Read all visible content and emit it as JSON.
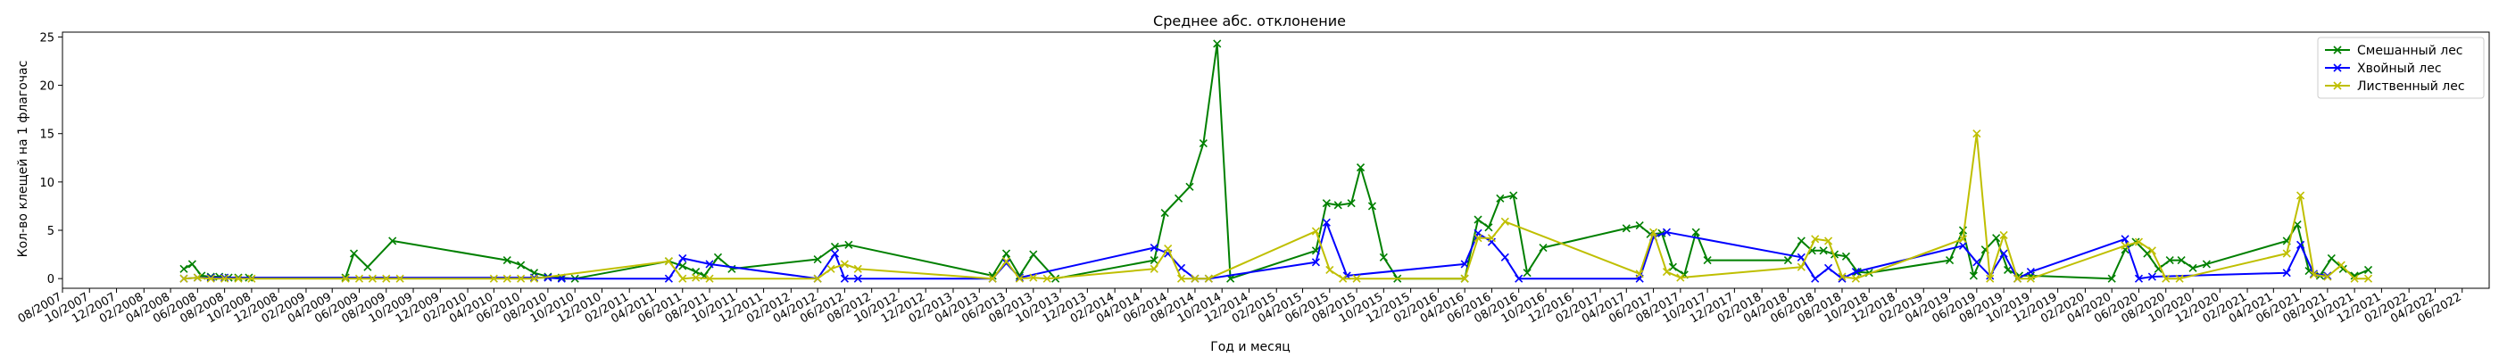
{
  "chart_data": {
    "type": "line",
    "title": "Среднее абс. отклонение",
    "xlabel": "Год и месяц",
    "ylabel": "Кол-во клещей на 1 флагочас",
    "xlim": [
      "2007-08-01",
      "2022-08-01"
    ],
    "ylim": [
      -1,
      25.5
    ],
    "y_ticks": [
      0,
      5,
      10,
      15,
      20,
      25
    ],
    "x_tick_labels": [
      "08/2007",
      "10/2007",
      "12/2007",
      "02/2008",
      "04/2008",
      "06/2008",
      "08/2008",
      "10/2008",
      "12/2008",
      "02/2009",
      "04/2009",
      "06/2009",
      "08/2009",
      "10/2009",
      "12/2009",
      "02/2010",
      "04/2010",
      "06/2010",
      "08/2010",
      "10/2010",
      "12/2010",
      "02/2011",
      "04/2011",
      "06/2011",
      "08/2011",
      "10/2011",
      "12/2011",
      "02/2012",
      "04/2012",
      "06/2012",
      "08/2012",
      "10/2012",
      "12/2012",
      "02/2013",
      "04/2013",
      "06/2013",
      "08/2013",
      "10/2013",
      "12/2013",
      "02/2014",
      "04/2014",
      "06/2014",
      "08/2014",
      "10/2014",
      "12/2014",
      "02/2015",
      "04/2015",
      "06/2015",
      "08/2015",
      "10/2015",
      "12/2015",
      "02/2016",
      "04/2016",
      "06/2016",
      "08/2016",
      "10/2016",
      "12/2016",
      "02/2017",
      "04/2017",
      "06/2017",
      "08/2017",
      "10/2017",
      "12/2017",
      "02/2018",
      "04/2018",
      "06/2018",
      "08/2018",
      "10/2018",
      "12/2018",
      "02/2019",
      "04/2019",
      "06/2019",
      "08/2019",
      "10/2019",
      "12/2019",
      "02/2020",
      "04/2020",
      "06/2020",
      "08/2020",
      "10/2020",
      "12/2020",
      "02/2021",
      "04/2021",
      "06/2021",
      "08/2021",
      "10/2021",
      "12/2021",
      "02/2022",
      "04/2022",
      "06/2022"
    ],
    "grid": false,
    "legend_position": "top-right",
    "series": [
      {
        "name": "Смешанный лес",
        "color": "#008000",
        "points": [
          [
            "2008-05-01",
            1.0
          ],
          [
            "2008-05-20",
            1.5
          ],
          [
            "2008-06-10",
            0.3
          ],
          [
            "2008-07-01",
            0.2
          ],
          [
            "2008-07-20",
            0.2
          ],
          [
            "2008-08-10",
            0.1
          ],
          [
            "2008-09-01",
            0.1
          ],
          [
            "2008-09-25",
            0.1
          ],
          [
            "2009-05-01",
            0.1
          ],
          [
            "2009-05-20",
            2.6
          ],
          [
            "2009-06-20",
            1.2
          ],
          [
            "2009-08-15",
            3.9
          ],
          [
            "2010-05-01",
            1.9
          ],
          [
            "2010-06-01",
            1.4
          ],
          [
            "2010-07-01",
            0.6
          ],
          [
            "2010-08-01",
            0.2
          ],
          [
            "2010-09-01",
            0.1
          ],
          [
            "2010-10-01",
            0.0
          ],
          [
            "2011-05-01",
            1.8
          ],
          [
            "2011-06-01",
            1.3
          ],
          [
            "2011-07-01",
            0.7
          ],
          [
            "2011-07-20",
            0.3
          ],
          [
            "2011-08-20",
            2.2
          ],
          [
            "2011-09-20",
            1.0
          ],
          [
            "2012-04-01",
            2.0
          ],
          [
            "2012-05-10",
            3.3
          ],
          [
            "2012-06-10",
            3.5
          ],
          [
            "2013-05-01",
            0.3
          ],
          [
            "2013-06-01",
            2.6
          ],
          [
            "2013-07-01",
            0.3
          ],
          [
            "2013-08-01",
            2.5
          ],
          [
            "2013-09-20",
            0.0
          ],
          [
            "2014-05-01",
            1.9
          ],
          [
            "2014-05-25",
            6.8
          ],
          [
            "2014-06-25",
            8.3
          ],
          [
            "2014-07-20",
            9.5
          ],
          [
            "2014-08-20",
            14.0
          ],
          [
            "2014-09-20",
            24.3
          ],
          [
            "2014-10-20",
            0.0
          ],
          [
            "2015-05-01",
            2.9
          ],
          [
            "2015-05-25",
            7.8
          ],
          [
            "2015-06-20",
            7.6
          ],
          [
            "2015-07-20",
            7.8
          ],
          [
            "2015-08-10",
            11.5
          ],
          [
            "2015-09-05",
            7.5
          ],
          [
            "2015-10-01",
            2.2
          ],
          [
            "2015-11-01",
            0.0
          ],
          [
            "2016-04-01",
            0.0
          ],
          [
            "2016-05-01",
            6.1
          ],
          [
            "2016-05-25",
            5.3
          ],
          [
            "2016-06-20",
            8.3
          ],
          [
            "2016-07-20",
            8.6
          ],
          [
            "2016-08-20",
            0.6
          ],
          [
            "2016-09-25",
            3.2
          ],
          [
            "2017-04-01",
            5.2
          ],
          [
            "2017-05-01",
            5.5
          ],
          [
            "2017-05-25",
            4.6
          ],
          [
            "2017-06-20",
            4.7
          ],
          [
            "2017-07-15",
            1.2
          ],
          [
            "2017-08-10",
            0.4
          ],
          [
            "2017-09-05",
            4.8
          ],
          [
            "2017-10-01",
            1.9
          ],
          [
            "2018-04-01",
            1.9
          ],
          [
            "2018-05-01",
            3.9
          ],
          [
            "2018-05-25",
            2.9
          ],
          [
            "2018-06-20",
            2.9
          ],
          [
            "2018-07-15",
            2.5
          ],
          [
            "2018-08-10",
            2.3
          ],
          [
            "2018-09-05",
            0.7
          ],
          [
            "2018-10-01",
            0.6
          ],
          [
            "2019-04-01",
            1.9
          ],
          [
            "2019-05-01",
            5.0
          ],
          [
            "2019-05-25",
            0.3
          ],
          [
            "2019-06-20",
            3.0
          ],
          [
            "2019-07-15",
            4.2
          ],
          [
            "2019-08-10",
            0.9
          ],
          [
            "2019-09-05",
            0.3
          ],
          [
            "2019-10-01",
            0.3
          ],
          [
            "2020-04-01",
            0.0
          ],
          [
            "2020-05-01",
            3.0
          ],
          [
            "2020-05-25",
            3.8
          ],
          [
            "2020-06-20",
            2.6
          ],
          [
            "2020-07-15",
            1.0
          ],
          [
            "2020-08-10",
            1.9
          ],
          [
            "2020-09-05",
            1.9
          ],
          [
            "2020-10-01",
            1.1
          ],
          [
            "2020-11-01",
            1.5
          ],
          [
            "2021-05-01",
            3.9
          ],
          [
            "2021-05-25",
            5.6
          ],
          [
            "2021-06-20",
            0.8
          ],
          [
            "2021-07-15",
            0.3
          ],
          [
            "2021-08-10",
            2.1
          ],
          [
            "2021-09-05",
            1.0
          ],
          [
            "2021-10-01",
            0.3
          ],
          [
            "2021-11-01",
            0.9
          ]
        ]
      },
      {
        "name": "Хвойный лес",
        "color": "#0000ff",
        "points": [
          [
            "2008-05-01",
            0.0
          ],
          [
            "2008-06-01",
            0.1
          ],
          [
            "2008-07-01",
            0.1
          ],
          [
            "2008-08-01",
            0.1
          ],
          [
            "2010-07-01",
            0.1
          ],
          [
            "2010-08-01",
            0.1
          ],
          [
            "2010-09-01",
            0.0
          ],
          [
            "2011-05-01",
            0.0
          ],
          [
            "2011-06-01",
            2.1
          ],
          [
            "2011-08-01",
            1.5
          ],
          [
            "2012-04-01",
            0.0
          ],
          [
            "2012-05-10",
            2.6
          ],
          [
            "2012-06-01",
            0.0
          ],
          [
            "2012-07-01",
            0.0
          ],
          [
            "2013-05-01",
            0.0
          ],
          [
            "2013-06-01",
            1.6
          ],
          [
            "2013-07-01",
            0.1
          ],
          [
            "2014-05-01",
            3.2
          ],
          [
            "2014-06-01",
            2.6
          ],
          [
            "2014-07-01",
            1.1
          ],
          [
            "2014-08-01",
            0.0
          ],
          [
            "2014-09-01",
            0.0
          ],
          [
            "2015-05-01",
            1.7
          ],
          [
            "2015-05-25",
            5.8
          ],
          [
            "2015-07-10",
            0.3
          ],
          [
            "2016-04-01",
            1.5
          ],
          [
            "2016-05-01",
            4.7
          ],
          [
            "2016-06-01",
            3.8
          ],
          [
            "2016-07-01",
            2.2
          ],
          [
            "2016-08-01",
            0.0
          ],
          [
            "2017-05-01",
            0.0
          ],
          [
            "2017-06-01",
            4.3
          ],
          [
            "2017-07-01",
            4.8
          ],
          [
            "2018-05-01",
            2.2
          ],
          [
            "2018-06-01",
            0.0
          ],
          [
            "2018-07-01",
            1.1
          ],
          [
            "2018-08-01",
            0.0
          ],
          [
            "2018-09-01",
            0.7
          ],
          [
            "2019-05-01",
            3.4
          ],
          [
            "2019-06-01",
            1.7
          ],
          [
            "2019-07-01",
            0.3
          ],
          [
            "2019-08-01",
            2.6
          ],
          [
            "2019-09-01",
            0.0
          ],
          [
            "2019-10-01",
            0.7
          ],
          [
            "2020-05-01",
            4.1
          ],
          [
            "2020-06-01",
            0.0
          ],
          [
            "2020-07-01",
            0.2
          ],
          [
            "2021-05-01",
            0.6
          ],
          [
            "2021-06-01",
            3.5
          ],
          [
            "2021-07-01",
            0.5
          ],
          [
            "2021-08-01",
            0.3
          ]
        ]
      },
      {
        "name": "Лиственный лес",
        "color": "#bfbf00",
        "points": [
          [
            "2008-05-01",
            0.0
          ],
          [
            "2008-06-01",
            0.1
          ],
          [
            "2008-07-01",
            0.0
          ],
          [
            "2008-08-01",
            0.0
          ],
          [
            "2008-09-01",
            0.0
          ],
          [
            "2008-10-01",
            0.0
          ],
          [
            "2009-05-01",
            0.0
          ],
          [
            "2009-06-01",
            0.0
          ],
          [
            "2009-07-01",
            0.0
          ],
          [
            "2009-08-01",
            0.0
          ],
          [
            "2009-09-01",
            0.0
          ],
          [
            "2010-04-01",
            0.0
          ],
          [
            "2010-05-01",
            0.0
          ],
          [
            "2010-06-01",
            0.0
          ],
          [
            "2010-07-01",
            0.0
          ],
          [
            "2011-05-01",
            1.8
          ],
          [
            "2011-06-01",
            0.0
          ],
          [
            "2011-07-01",
            0.1
          ],
          [
            "2011-08-01",
            0.0
          ],
          [
            "2012-04-01",
            0.0
          ],
          [
            "2012-05-01",
            1.0
          ],
          [
            "2012-06-01",
            1.5
          ],
          [
            "2012-07-01",
            1.0
          ],
          [
            "2013-05-01",
            0.0
          ],
          [
            "2013-06-01",
            1.8
          ],
          [
            "2013-07-01",
            0.0
          ],
          [
            "2013-08-01",
            0.1
          ],
          [
            "2013-09-01",
            0.0
          ],
          [
            "2014-05-01",
            1.0
          ],
          [
            "2014-06-01",
            3.1
          ],
          [
            "2014-07-01",
            0.0
          ],
          [
            "2014-08-01",
            0.0
          ],
          [
            "2014-09-01",
            0.0
          ],
          [
            "2015-05-01",
            4.9
          ],
          [
            "2015-06-01",
            0.9
          ],
          [
            "2015-07-01",
            0.0
          ],
          [
            "2015-08-01",
            0.0
          ],
          [
            "2016-04-01",
            0.0
          ],
          [
            "2016-05-01",
            4.2
          ],
          [
            "2016-06-01",
            4.2
          ],
          [
            "2016-07-01",
            5.9
          ],
          [
            "2017-05-01",
            0.5
          ],
          [
            "2017-06-01",
            4.8
          ],
          [
            "2017-07-01",
            0.7
          ],
          [
            "2017-08-01",
            0.1
          ],
          [
            "2018-05-01",
            1.2
          ],
          [
            "2018-06-01",
            4.1
          ],
          [
            "2018-07-01",
            3.9
          ],
          [
            "2018-08-01",
            0.2
          ],
          [
            "2018-09-01",
            0.0
          ],
          [
            "2019-05-01",
            4.1
          ],
          [
            "2019-06-01",
            15.0
          ],
          [
            "2019-07-01",
            0.0
          ],
          [
            "2019-08-01",
            4.5
          ],
          [
            "2019-09-01",
            0.0
          ],
          [
            "2019-10-01",
            0.0
          ],
          [
            "2020-05-01",
            3.4
          ],
          [
            "2020-06-01",
            3.8
          ],
          [
            "2020-07-01",
            2.9
          ],
          [
            "2020-08-01",
            0.0
          ],
          [
            "2020-09-01",
            0.0
          ],
          [
            "2021-05-01",
            2.6
          ],
          [
            "2021-06-01",
            8.6
          ],
          [
            "2021-07-01",
            0.4
          ],
          [
            "2021-08-01",
            0.2
          ],
          [
            "2021-09-01",
            1.4
          ],
          [
            "2021-10-01",
            0.0
          ],
          [
            "2021-11-01",
            0.0
          ]
        ]
      }
    ]
  }
}
